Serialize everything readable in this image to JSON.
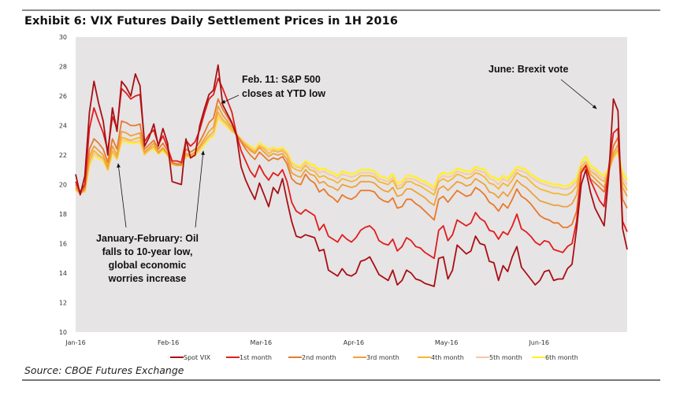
{
  "header": {
    "title": "Exhibit 6: VIX Futures Daily Settlement Prices in 1H 2016"
  },
  "footer": {
    "source": "Source: CBOE Futures Exchange"
  },
  "chart_data": {
    "type": "line",
    "title": "Exhibit 6: VIX Futures Daily Settlement Prices in 1H 2016",
    "xlabel": "",
    "ylabel": "",
    "ylim": [
      10,
      30
    ],
    "yticks": [
      "10",
      "12",
      "14",
      "16",
      "18",
      "20",
      "22",
      "24",
      "26",
      "28",
      "30"
    ],
    "xticks": [
      {
        "label": "Jan-16",
        "day": 0
      },
      {
        "label": "Feb-16",
        "day": 20
      },
      {
        "label": "Mar-16",
        "day": 40
      },
      {
        "label": "Apr-16",
        "day": 60
      },
      {
        "label": "May-16",
        "day": 80
      },
      {
        "label": "Jun-16",
        "day": 100
      }
    ],
    "xlim": [
      0,
      119
    ],
    "grid": false,
    "legend_position": "bottom",
    "background": "#e6e4e5",
    "series": [
      {
        "name": "Spot VIX",
        "color": "#a80f14",
        "values": [
          20.7,
          19.3,
          20.6,
          24.9,
          27.0,
          25.5,
          24.3,
          22.0,
          25.2,
          23.6,
          27.0,
          26.6,
          26.0,
          27.5,
          26.7,
          22.6,
          23.2,
          24.1,
          22.6,
          23.8,
          22.8,
          20.2,
          20.1,
          20.0,
          23.1,
          21.8,
          22.0,
          24.0,
          25.1,
          26.1,
          26.4,
          28.1,
          25.4,
          24.8,
          24.2,
          23.3,
          21.2,
          20.3,
          19.6,
          19.0,
          20.1,
          19.3,
          18.5,
          19.8,
          19.4,
          20.4,
          18.9,
          17.5,
          16.5,
          16.4,
          16.6,
          16.5,
          16.4,
          15.5,
          15.6,
          14.2,
          14.0,
          13.8,
          14.3,
          13.9,
          13.8,
          14.0,
          14.8,
          14.9,
          15.1,
          14.5,
          13.9,
          13.7,
          13.5,
          14.2,
          13.2,
          13.5,
          14.2,
          14.0,
          13.6,
          13.5,
          13.3,
          13.2,
          13.1,
          15.0,
          15.1,
          13.6,
          14.2,
          15.9,
          15.6,
          15.3,
          15.5,
          16.5,
          16.0,
          15.9,
          14.8,
          14.7,
          13.5,
          14.5,
          14.1,
          15.1,
          15.8,
          14.4,
          14.0,
          13.6,
          13.2,
          13.5,
          14.1,
          14.2,
          13.5,
          13.6,
          13.6,
          14.3,
          14.6,
          17.0,
          20.0,
          21.0,
          19.5,
          18.4,
          17.8,
          17.2,
          20.7,
          25.8,
          25.0,
          17.0,
          15.6
        ]
      },
      {
        "name": "1st month",
        "color": "#e01d1d",
        "values": [
          20.2,
          19.5,
          20.0,
          23.8,
          25.2,
          24.3,
          23.5,
          22.3,
          24.6,
          23.8,
          26.5,
          26.2,
          25.8,
          26.0,
          26.1,
          22.9,
          23.4,
          23.7,
          22.7,
          23.3,
          22.5,
          21.6,
          21.6,
          21.5,
          23.0,
          22.6,
          22.9,
          23.7,
          24.8,
          25.8,
          26.1,
          27.2,
          26.5,
          25.7,
          24.9,
          23.4,
          22.3,
          21.6,
          20.9,
          20.5,
          21.3,
          20.7,
          20.3,
          20.8,
          20.6,
          21.0,
          20.2,
          18.8,
          18.2,
          18.0,
          18.3,
          18.1,
          17.9,
          16.9,
          17.3,
          16.5,
          16.3,
          16.1,
          16.6,
          16.3,
          16.1,
          16.4,
          16.9,
          17.1,
          17.2,
          16.9,
          16.2,
          16.0,
          15.9,
          16.3,
          15.5,
          15.8,
          16.4,
          16.2,
          15.8,
          15.7,
          15.4,
          15.2,
          15.0,
          16.9,
          17.2,
          16.2,
          16.6,
          17.6,
          17.4,
          17.2,
          17.4,
          18.1,
          17.7,
          17.5,
          16.9,
          16.8,
          16.3,
          16.8,
          16.6,
          17.2,
          18.0,
          17.0,
          16.8,
          16.5,
          16.1,
          15.9,
          16.2,
          16.1,
          15.6,
          15.5,
          15.4,
          15.8,
          16.0,
          17.5,
          20.8,
          21.3,
          20.3,
          19.6,
          18.9,
          18.5,
          21.2,
          23.5,
          23.8,
          17.5,
          16.8
        ]
      },
      {
        "name": "2nd month",
        "color": "#e8792a",
        "values": [
          20.0,
          19.4,
          19.8,
          22.4,
          23.1,
          22.8,
          22.4,
          21.5,
          23.1,
          22.4,
          24.3,
          24.2,
          24.0,
          24.0,
          24.1,
          22.4,
          22.7,
          23.0,
          22.4,
          22.8,
          22.3,
          21.5,
          21.4,
          21.4,
          22.4,
          22.2,
          22.4,
          22.9,
          23.5,
          24.2,
          24.5,
          25.8,
          25.1,
          24.6,
          24.1,
          23.4,
          22.9,
          22.4,
          22.0,
          21.7,
          22.2,
          21.9,
          21.6,
          21.8,
          21.7,
          21.9,
          21.4,
          20.4,
          20.1,
          20.0,
          20.7,
          20.3,
          20.1,
          19.5,
          19.7,
          19.3,
          19.1,
          18.8,
          19.3,
          19.1,
          19.0,
          19.2,
          19.6,
          19.6,
          19.6,
          19.5,
          19.1,
          18.9,
          18.8,
          19.1,
          18.4,
          18.5,
          19.0,
          19.0,
          18.7,
          18.5,
          18.2,
          17.9,
          17.6,
          19.0,
          19.2,
          18.8,
          19.2,
          19.6,
          19.4,
          19.2,
          19.3,
          19.8,
          19.6,
          19.3,
          18.8,
          18.6,
          18.2,
          18.7,
          18.4,
          19.0,
          19.7,
          19.2,
          19.0,
          18.7,
          18.3,
          17.9,
          17.7,
          17.6,
          17.4,
          17.4,
          17.1,
          17.1,
          17.3,
          18.2,
          20.8,
          21.2,
          20.4,
          20.1,
          19.8,
          19.5,
          20.9,
          22.6,
          23.2,
          19.0,
          18.4
        ]
      },
      {
        "name": "3rd month",
        "color": "#f0a03a",
        "values": [
          19.8,
          19.4,
          19.7,
          21.9,
          22.6,
          22.3,
          22.0,
          21.2,
          22.6,
          22.0,
          23.6,
          23.5,
          23.3,
          23.4,
          23.5,
          22.2,
          22.5,
          22.8,
          22.2,
          22.5,
          22.1,
          21.4,
          21.3,
          21.3,
          22.1,
          22.0,
          22.2,
          22.6,
          23.1,
          23.6,
          23.9,
          25.3,
          24.7,
          24.3,
          23.9,
          23.4,
          22.9,
          22.6,
          22.3,
          22.1,
          22.5,
          22.2,
          21.9,
          22.1,
          22.0,
          22.1,
          21.7,
          20.8,
          20.6,
          20.5,
          21.0,
          20.7,
          20.6,
          20.1,
          20.2,
          19.9,
          19.8,
          19.6,
          20.0,
          19.9,
          19.8,
          19.9,
          20.2,
          20.2,
          20.2,
          20.1,
          19.8,
          19.6,
          19.5,
          19.8,
          19.2,
          19.3,
          19.7,
          19.7,
          19.5,
          19.3,
          19.1,
          18.8,
          18.6,
          19.7,
          19.9,
          19.6,
          19.9,
          20.2,
          20.1,
          19.9,
          20.0,
          20.4,
          20.2,
          20.0,
          19.5,
          19.4,
          19.1,
          19.5,
          19.2,
          19.7,
          20.3,
          20.0,
          19.8,
          19.5,
          19.2,
          18.9,
          18.8,
          18.7,
          18.6,
          18.6,
          18.5,
          18.5,
          18.7,
          19.3,
          21.0,
          21.3,
          20.7,
          20.4,
          20.1,
          19.8,
          20.8,
          22.1,
          22.7,
          19.8,
          19.2
        ]
      },
      {
        "name": "4th month",
        "color": "#f5b82e",
        "values": [
          19.7,
          19.4,
          19.6,
          21.6,
          22.3,
          22.0,
          21.8,
          21.0,
          22.3,
          21.8,
          23.2,
          23.1,
          23.0,
          23.1,
          23.2,
          22.1,
          22.4,
          22.6,
          22.1,
          22.4,
          22.0,
          21.4,
          21.3,
          21.3,
          22.0,
          21.9,
          22.1,
          22.5,
          22.9,
          23.3,
          23.6,
          24.9,
          24.4,
          24.1,
          23.7,
          23.4,
          23.0,
          22.7,
          22.4,
          22.2,
          22.6,
          22.4,
          22.1,
          22.3,
          22.2,
          22.3,
          22.0,
          21.2,
          21.0,
          20.9,
          21.3,
          21.0,
          20.9,
          20.5,
          20.6,
          20.4,
          20.3,
          20.1,
          20.4,
          20.3,
          20.2,
          20.3,
          20.6,
          20.6,
          20.6,
          20.5,
          20.2,
          20.1,
          20.0,
          20.3,
          19.7,
          19.8,
          20.2,
          20.2,
          20.0,
          19.9,
          19.7,
          19.5,
          19.3,
          20.2,
          20.4,
          20.2,
          20.4,
          20.7,
          20.6,
          20.4,
          20.5,
          20.8,
          20.7,
          20.5,
          20.1,
          20.0,
          19.7,
          20.1,
          19.9,
          20.3,
          20.8,
          20.6,
          20.5,
          20.2,
          19.9,
          19.7,
          19.6,
          19.5,
          19.4,
          19.4,
          19.3,
          19.3,
          19.5,
          19.9,
          21.2,
          21.5,
          20.9,
          20.7,
          20.4,
          20.2,
          20.9,
          21.9,
          22.4,
          20.2,
          19.6
        ]
      },
      {
        "name": "5th month",
        "color": "#f6c7a6",
        "values": [
          19.6,
          19.4,
          19.5,
          21.4,
          22.1,
          21.9,
          21.7,
          21.0,
          22.2,
          21.7,
          23.0,
          23.0,
          22.9,
          22.9,
          23.0,
          22.0,
          22.3,
          22.5,
          22.1,
          22.4,
          22.0,
          21.4,
          21.3,
          21.3,
          21.9,
          21.9,
          22.0,
          22.4,
          22.8,
          23.2,
          23.4,
          24.7,
          24.3,
          24.0,
          23.6,
          23.4,
          23.1,
          22.8,
          22.5,
          22.3,
          22.7,
          22.5,
          22.3,
          22.4,
          22.3,
          22.4,
          22.1,
          21.4,
          21.2,
          21.1,
          21.5,
          21.2,
          21.1,
          20.8,
          20.9,
          20.7,
          20.6,
          20.4,
          20.7,
          20.6,
          20.5,
          20.6,
          20.8,
          20.8,
          20.8,
          20.7,
          20.4,
          20.3,
          20.2,
          20.5,
          19.9,
          20.0,
          20.4,
          20.4,
          20.3,
          20.1,
          20.0,
          19.8,
          19.6,
          20.4,
          20.6,
          20.5,
          20.6,
          20.9,
          20.8,
          20.7,
          20.7,
          21.0,
          20.9,
          20.8,
          20.4,
          20.3,
          20.0,
          20.4,
          20.2,
          20.6,
          21.0,
          20.9,
          20.8,
          20.5,
          20.3,
          20.1,
          20.0,
          19.9,
          19.8,
          19.8,
          19.7,
          19.7,
          19.9,
          20.2,
          21.4,
          21.6,
          21.1,
          20.9,
          20.6,
          20.4,
          21.0,
          21.8,
          22.3,
          20.5,
          20.0
        ]
      },
      {
        "name": "6th month",
        "color": "#fff02a",
        "values": [
          19.6,
          19.5,
          19.5,
          21.3,
          22.0,
          21.8,
          21.6,
          21.0,
          22.1,
          21.7,
          22.9,
          22.9,
          22.8,
          22.8,
          22.9,
          22.0,
          22.3,
          22.4,
          22.1,
          22.3,
          22.0,
          21.4,
          21.3,
          21.3,
          21.9,
          21.9,
          22.0,
          22.3,
          22.7,
          23.1,
          23.3,
          24.5,
          24.2,
          23.9,
          23.6,
          23.4,
          23.1,
          22.8,
          22.6,
          22.4,
          22.8,
          22.6,
          22.4,
          22.5,
          22.4,
          22.5,
          22.2,
          21.5,
          21.3,
          21.2,
          21.6,
          21.4,
          21.3,
          21.0,
          21.1,
          20.9,
          20.8,
          20.6,
          20.9,
          20.8,
          20.7,
          20.8,
          21.0,
          21.0,
          21.0,
          20.9,
          20.6,
          20.5,
          20.4,
          20.7,
          20.1,
          20.2,
          20.6,
          20.6,
          20.5,
          20.3,
          20.2,
          20.0,
          19.8,
          20.6,
          20.8,
          20.7,
          20.8,
          21.1,
          21.0,
          20.9,
          20.9,
          21.2,
          21.1,
          21.0,
          20.6,
          20.5,
          20.3,
          20.6,
          20.4,
          20.8,
          21.2,
          21.1,
          21.0,
          20.7,
          20.5,
          20.3,
          20.2,
          20.1,
          20.0,
          20.0,
          19.9,
          19.9,
          20.1,
          20.4,
          21.5,
          21.9,
          21.3,
          21.1,
          20.8,
          20.6,
          21.1,
          21.8,
          22.2,
          20.8,
          20.3
        ]
      }
    ],
    "annotations": [
      {
        "lines": [
          "Feb. 11: S&P 500",
          "closes at YTD low"
        ]
      },
      {
        "lines": [
          "June: Brexit vote"
        ]
      },
      {
        "lines": [
          "January-February: Oil",
          "falls to 10-year low,",
          "global economic",
          "worries increase"
        ]
      }
    ]
  }
}
